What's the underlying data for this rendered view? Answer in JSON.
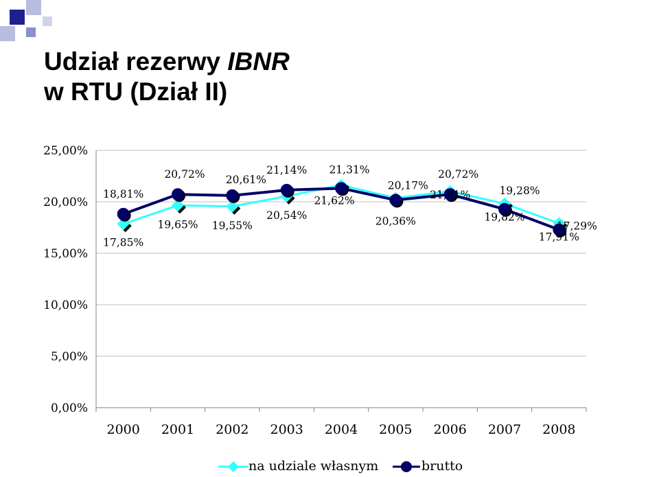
{
  "slide": {
    "title_line1": "Udział rezerwy ",
    "title_line1_italic": "IBNR",
    "title_line2": "w RTU (Dział II)"
  },
  "colors": {
    "series_net": "#33ffff",
    "series_gross": "#000066",
    "logo_dark": "#1f1f8f",
    "logo_light": "#b8bce0",
    "grid": "#bfbfbf"
  },
  "chart_data": {
    "type": "line",
    "title": "",
    "xlabel": "",
    "ylabel": "",
    "ylim": [
      0,
      25
    ],
    "yticks": [
      "0,00%",
      "5,00%",
      "10,00%",
      "15,00%",
      "20,00%",
      "25,00%"
    ],
    "categories": [
      "2000",
      "2001",
      "2002",
      "2003",
      "2004",
      "2005",
      "2006",
      "2007",
      "2008"
    ],
    "grid": "horizontal",
    "legend_position": "bottom",
    "series": [
      {
        "name": "na udziale własnym",
        "marker": "diamond",
        "values": [
          17.85,
          19.65,
          19.55,
          20.54,
          21.62,
          20.36,
          21.01,
          19.82,
          17.91
        ],
        "labels": [
          "17,85%",
          "19,65%",
          "19,55%",
          "20,54%",
          "21,62%",
          "20,36%",
          "21,01%",
          "19,82%",
          "17,91%"
        ]
      },
      {
        "name": "brutto",
        "marker": "circle",
        "values": [
          18.81,
          20.72,
          20.61,
          21.14,
          21.31,
          20.17,
          20.72,
          19.28,
          17.29
        ],
        "labels": [
          "18,81%",
          "20,72%",
          "20,61%",
          "21,14%",
          "21,31%",
          "20,17%",
          "20,72%",
          "19,28%",
          "17,29%"
        ]
      }
    ]
  }
}
